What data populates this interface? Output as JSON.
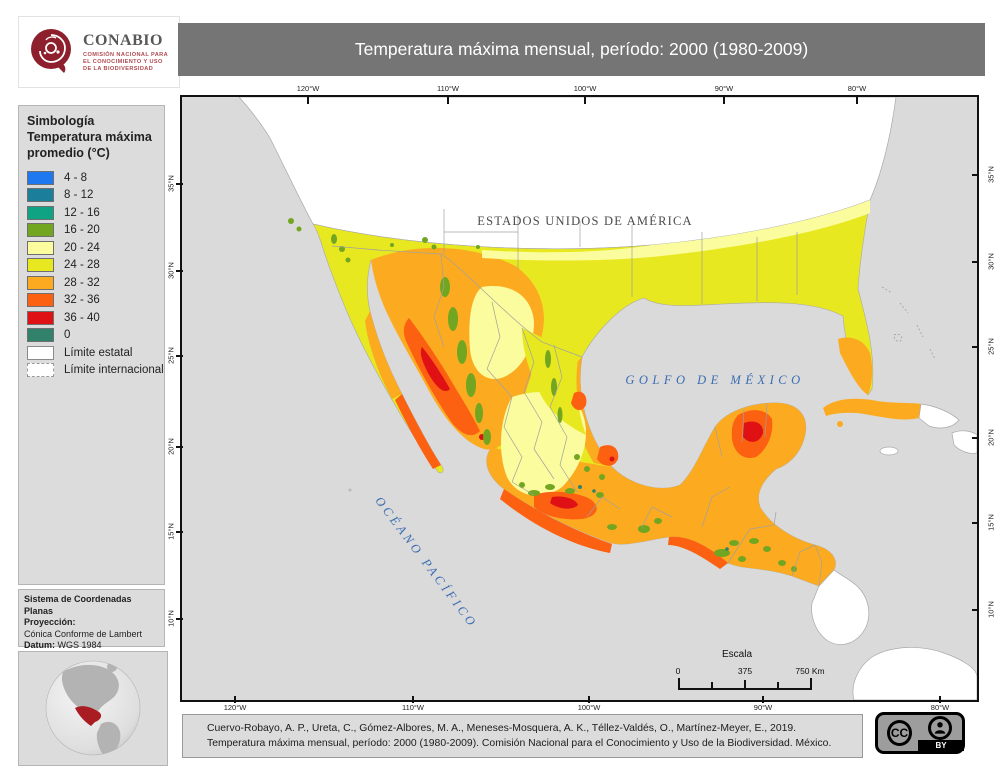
{
  "header": {
    "title": "Temperatura máxima mensual, período: 2000 (1980-2009)",
    "logo": {
      "name": "CONABIO",
      "subtitle_lines": [
        "COMISIÓN NACIONAL PARA",
        "EL CONOCIMIENTO Y USO",
        "DE LA BIODIVERSIDAD"
      ]
    }
  },
  "legend": {
    "title": "Simbología",
    "subtitle": "Temperatura máxima promedio (°C)",
    "items": [
      {
        "label": "4 - 8",
        "color": "#1e78f0"
      },
      {
        "label": "8 - 12",
        "color": "#1b7f9b"
      },
      {
        "label": "12 - 16",
        "color": "#0fa383"
      },
      {
        "label": "16 - 20",
        "color": "#72a621"
      },
      {
        "label": "20 - 24",
        "color": "#fbfc9e"
      },
      {
        "label": "24 - 28",
        "color": "#e8e820"
      },
      {
        "label": "28 - 32",
        "color": "#fcab21"
      },
      {
        "label": "32 - 36",
        "color": "#fc6011"
      },
      {
        "label": "36 - 40",
        "color": "#e01114"
      },
      {
        "label": "0",
        "color": "#31816b"
      }
    ],
    "boundaries": [
      {
        "label": "Límite estatal",
        "style": "solid"
      },
      {
        "label": "Límite internacional",
        "style": "dashed"
      }
    ]
  },
  "map": {
    "lon": [
      "120°W",
      "110°W",
      "100°W",
      "90°W",
      "80°W"
    ],
    "lat": [
      "35°N",
      "30°N",
      "25°N",
      "20°N",
      "15°N",
      "10°N"
    ],
    "labels": {
      "usa": "ESTADOS UNIDOS DE AMÉRICA",
      "gulf": "GOLFO DE MÉXICO",
      "pacific": "OCÉANO PACÍFICO"
    },
    "scalebar": {
      "title": "Escala",
      "start": "0",
      "mid": "375",
      "end": "750 Km"
    }
  },
  "projection": {
    "title": "Sistema de Coordenadas Planas",
    "label1": "Proyección:",
    "value1": "Cónica Conforme de Lambert",
    "label2": "Datum:",
    "value2": " WGS 1984"
  },
  "citation": {
    "line1": "Cuervo-Robayo, A. P., Ureta, C., Gómez-Albores, M. A., Meneses-Mosquera, A. K., Téllez-Valdés,  O., Martínez-Meyer, E., 2019.",
    "line2": "Temperatura máxima mensual, período: 2000 (1980-2009). Comisión Nacional para el Conocimiento y Uso de la Biodiversidad. México."
  },
  "license": {
    "cc": "CC",
    "by": "BY"
  }
}
